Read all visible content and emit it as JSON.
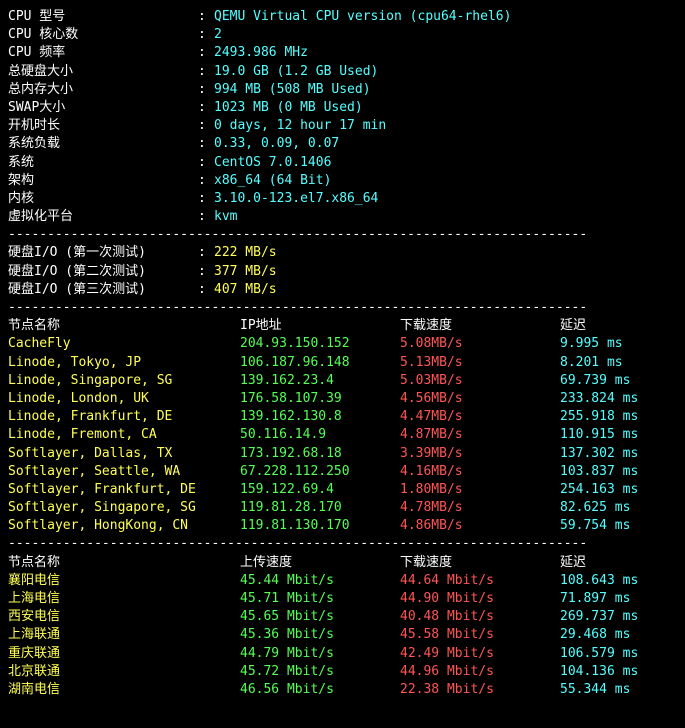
{
  "sysinfo": [
    {
      "label": "CPU 型号",
      "value": "QEMU Virtual CPU version (cpu64-rhel6)",
      "color": "value-cyan"
    },
    {
      "label": "CPU 核心数",
      "value": "2",
      "color": "value-cyan"
    },
    {
      "label": "CPU 频率",
      "value": "2493.986 MHz",
      "color": "value-cyan"
    },
    {
      "label": "总硬盘大小",
      "value": "19.0 GB (1.2 GB Used)",
      "color": "value-cyan"
    },
    {
      "label": "总内存大小",
      "value": "994 MB (508 MB Used)",
      "color": "value-cyan"
    },
    {
      "label": "SWAP大小",
      "value": "1023 MB (0 MB Used)",
      "color": "value-cyan"
    },
    {
      "label": "开机时长",
      "value": "0 days, 12 hour 17 min",
      "color": "value-cyan"
    },
    {
      "label": "系统负载",
      "value": "0.33, 0.09, 0.07",
      "color": "value-cyan"
    },
    {
      "label": "系统",
      "value": "CentOS 7.0.1406",
      "color": "value-cyan"
    },
    {
      "label": "架构",
      "value": "x86_64 (64 Bit)",
      "color": "value-cyan"
    },
    {
      "label": "内核",
      "value": "3.10.0-123.el7.x86_64",
      "color": "value-cyan"
    },
    {
      "label": "虚拟化平台",
      "value": "kvm",
      "color": "value-cyan"
    }
  ],
  "diskio": [
    {
      "label": "硬盘I/O (第一次测试)",
      "value": "222 MB/s"
    },
    {
      "label": "硬盘I/O (第二次测试)",
      "value": "377 MB/s"
    },
    {
      "label": "硬盘I/O (第三次测试)",
      "value": "407 MB/s"
    }
  ],
  "net_headers1": {
    "node": "节点名称",
    "ip": "IP地址",
    "dl": "下载速度",
    "lat": "延迟"
  },
  "nodes1": [
    {
      "name": "CacheFly",
      "ip": "204.93.150.152",
      "dl": "5.08MB/s",
      "lat": "9.995 ms"
    },
    {
      "name": "Linode, Tokyo, JP",
      "ip": "106.187.96.148",
      "dl": "5.13MB/s",
      "lat": "8.201 ms"
    },
    {
      "name": "Linode, Singapore, SG",
      "ip": "139.162.23.4",
      "dl": "5.03MB/s",
      "lat": "69.739 ms"
    },
    {
      "name": "Linode, London, UK",
      "ip": "176.58.107.39",
      "dl": "4.56MB/s",
      "lat": "233.824 ms"
    },
    {
      "name": "Linode, Frankfurt, DE",
      "ip": "139.162.130.8",
      "dl": "4.47MB/s",
      "lat": "255.918 ms"
    },
    {
      "name": "Linode, Fremont, CA",
      "ip": "50.116.14.9",
      "dl": "4.87MB/s",
      "lat": "110.915 ms"
    },
    {
      "name": "Softlayer, Dallas, TX",
      "ip": "173.192.68.18",
      "dl": "3.39MB/s",
      "lat": "137.302 ms"
    },
    {
      "name": "Softlayer, Seattle, WA",
      "ip": "67.228.112.250",
      "dl": "4.16MB/s",
      "lat": "103.837 ms"
    },
    {
      "name": "Softlayer, Frankfurt, DE",
      "ip": "159.122.69.4",
      "dl": "1.80MB/s",
      "lat": "254.163 ms"
    },
    {
      "name": "Softlayer, Singapore, SG",
      "ip": "119.81.28.170",
      "dl": "4.78MB/s",
      "lat": "82.625 ms"
    },
    {
      "name": "Softlayer, HongKong, CN",
      "ip": "119.81.130.170",
      "dl": "4.86MB/s",
      "lat": "59.754 ms"
    }
  ],
  "net_headers2": {
    "node": "节点名称",
    "up": "上传速度",
    "dl": "下载速度",
    "lat": "延迟"
  },
  "nodes2": [
    {
      "name": "襄阳电信",
      "up": "45.44 Mbit/s",
      "dl": "44.64 Mbit/s",
      "lat": "108.643 ms"
    },
    {
      "name": "上海电信",
      "up": "45.71 Mbit/s",
      "dl": "44.90 Mbit/s",
      "lat": "71.897 ms"
    },
    {
      "name": "西安电信",
      "up": "45.65 Mbit/s",
      "dl": "40.48 Mbit/s",
      "lat": "269.737 ms"
    },
    {
      "name": "上海联通",
      "up": "45.36 Mbit/s",
      "dl": "45.58 Mbit/s",
      "lat": "29.468 ms"
    },
    {
      "name": "重庆联通",
      "up": "44.79 Mbit/s",
      "dl": "42.49 Mbit/s",
      "lat": "106.579 ms"
    },
    {
      "name": "北京联通",
      "up": "45.72 Mbit/s",
      "dl": "44.96 Mbit/s",
      "lat": "104.136 ms"
    },
    {
      "name": "湖南电信",
      "up": "46.56 Mbit/s",
      "dl": "22.38 Mbit/s",
      "lat": "55.344 ms"
    }
  ],
  "divider": "--------------------------------------------------------------------------"
}
